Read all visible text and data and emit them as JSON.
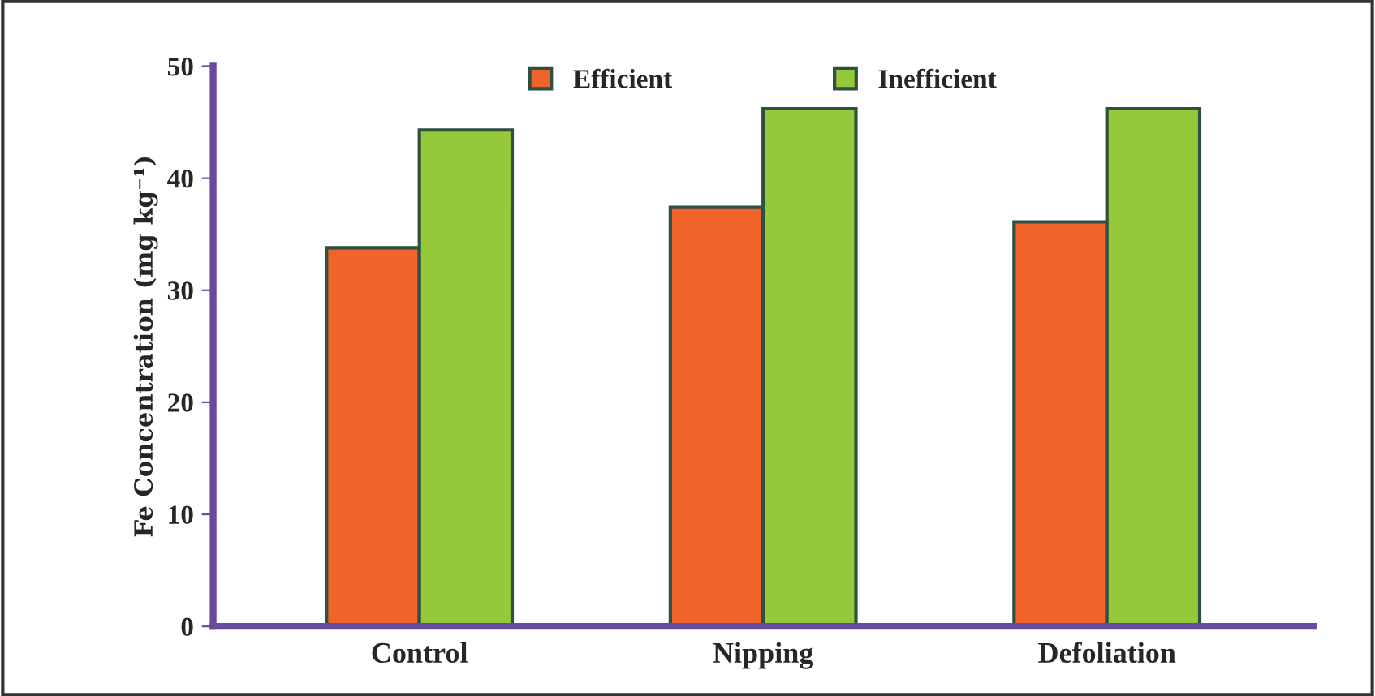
{
  "chart_data": {
    "type": "bar",
    "ylabel": "Fe Concentration (mg kg⁻¹)",
    "categories": [
      "Control",
      "Nipping",
      "Defoliation"
    ],
    "series": [
      {
        "name": "Efficient",
        "color": "#f0642a",
        "values": [
          33.8,
          37.4,
          36.1
        ]
      },
      {
        "name": "Inefficient",
        "color": "#96c83c",
        "values": [
          44.3,
          46.2,
          46.2
        ]
      }
    ],
    "ylim": [
      0,
      50
    ],
    "yticks": [
      0,
      10,
      20,
      30,
      40,
      50
    ],
    "grid": false,
    "legend": "top"
  }
}
